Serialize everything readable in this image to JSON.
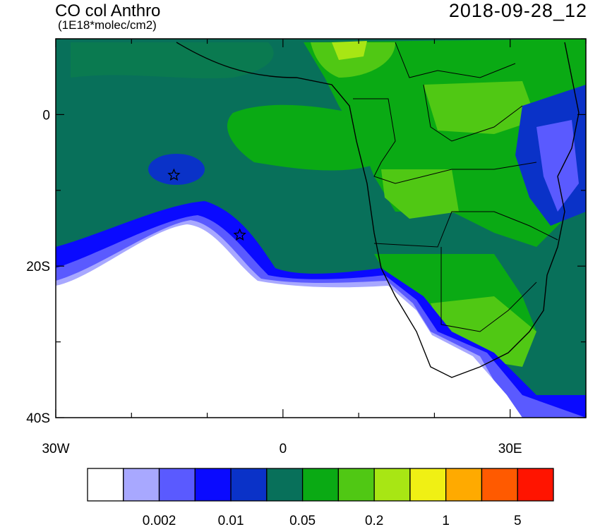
{
  "header": {
    "title": "CO col Anthro",
    "units": "(1E18*molec/cm2)",
    "timestamp": "2018-09-28_12"
  },
  "axes": {
    "lat_ticks": [
      {
        "value": 0,
        "label": "0"
      },
      {
        "value": -20,
        "label": "20S"
      },
      {
        "value": -40,
        "label": "40S"
      }
    ],
    "lon_ticks": [
      {
        "value": -30,
        "label": "30W"
      },
      {
        "value": 0,
        "label": "0"
      },
      {
        "value": 30,
        "label": "30E"
      }
    ],
    "lon_range": [
      -30,
      40
    ],
    "lat_range": [
      -40,
      10
    ]
  },
  "colorbar": {
    "colors": [
      "#ffffff",
      "#a8a8ff",
      "#5a5aff",
      "#0a0aff",
      "#0a32c8",
      "#08705a",
      "#0aaa14",
      "#50c814",
      "#a8e614",
      "#f0f014",
      "#ffaa00",
      "#ff5a00",
      "#ff1400"
    ],
    "labels": [
      "0.002",
      "0.01",
      "0.05",
      "0.2",
      "1",
      "5"
    ]
  },
  "markers": [
    {
      "name": "star",
      "lon": -14.4,
      "lat": -8.0
    },
    {
      "name": "star",
      "lon": -5.7,
      "lat": -15.9
    }
  ]
}
